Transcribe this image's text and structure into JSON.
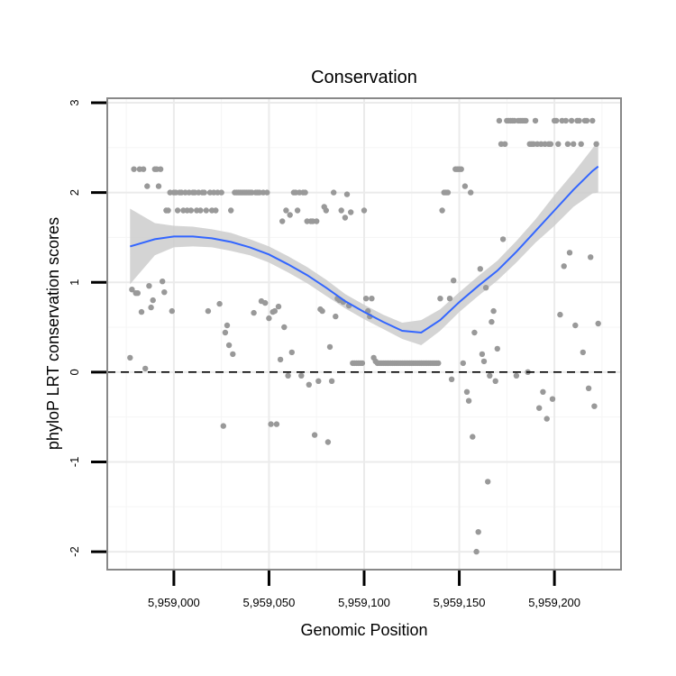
{
  "chart_data": {
    "type": "scatter",
    "title": "Conservation",
    "xlabel": "Genomic Position",
    "ylabel": "phyloP LRT conservation scores",
    "xlim": [
      5958965,
      5959235
    ],
    "ylim": [
      -2.2,
      3.05
    ],
    "x_ticks": [
      5959000,
      5959050,
      5959100,
      5959150,
      5959200
    ],
    "x_tick_labels": [
      "5,959,000",
      "5,959,050",
      "5,959,100",
      "5,959,150",
      "5,959,200"
    ],
    "y_ticks": [
      -2,
      -1,
      0,
      1,
      2,
      3
    ],
    "y_tick_labels": [
      "-2",
      "-1",
      "0",
      "1",
      "2",
      "3"
    ],
    "grid": true,
    "reference_line": {
      "y": 0,
      "style": "dashed"
    },
    "colors": {
      "points": "#999999",
      "smooth_line": "#3366ff",
      "confidence_band": "#cccccc",
      "panel_border": "#888888",
      "grid_major": "#ebebeb",
      "grid_minor": "#f5f5f5",
      "reference_line": "#000000"
    },
    "points": [
      [
        5958977,
        0.16
      ],
      [
        5958978,
        0.92
      ],
      [
        5958979,
        2.26
      ],
      [
        5958980,
        0.88
      ],
      [
        5958981,
        0.88
      ],
      [
        5958982,
        2.26
      ],
      [
        5958983,
        0.67
      ],
      [
        5958984,
        2.26
      ],
      [
        5958985,
        0.04
      ],
      [
        5958986,
        2.07
      ],
      [
        5958987,
        0.96
      ],
      [
        5958988,
        0.72
      ],
      [
        5958989,
        0.8
      ],
      [
        5958990,
        2.26
      ],
      [
        5958991,
        2.26
      ],
      [
        5958992,
        2.07
      ],
      [
        5958993,
        2.26
      ],
      [
        5958994,
        1.01
      ],
      [
        5958995,
        0.89
      ],
      [
        5958996,
        1.8
      ],
      [
        5958997,
        1.8
      ],
      [
        5958998,
        2.0
      ],
      [
        5958999,
        0.68
      ],
      [
        5959000,
        2.0
      ],
      [
        5959001,
        2.0
      ],
      [
        5959002,
        1.8
      ],
      [
        5959003,
        2.0
      ],
      [
        5959004,
        2.0
      ],
      [
        5959005,
        1.8
      ],
      [
        5959006,
        2.0
      ],
      [
        5959007,
        1.8
      ],
      [
        5959008,
        2.0
      ],
      [
        5959009,
        1.8
      ],
      [
        5959010,
        2.0
      ],
      [
        5959011,
        2.0
      ],
      [
        5959012,
        1.8
      ],
      [
        5959013,
        2.0
      ],
      [
        5959014,
        1.8
      ],
      [
        5959015,
        2.0
      ],
      [
        5959016,
        2.0
      ],
      [
        5959017,
        1.8
      ],
      [
        5959018,
        0.68
      ],
      [
        5959019,
        2.0
      ],
      [
        5959020,
        1.8
      ],
      [
        5959021,
        2.0
      ],
      [
        5959022,
        1.8
      ],
      [
        5959023,
        2.0
      ],
      [
        5959024,
        0.76
      ],
      [
        5959025,
        2.0
      ],
      [
        5959026,
        -0.6
      ],
      [
        5959027,
        0.44
      ],
      [
        5959028,
        0.52
      ],
      [
        5959029,
        0.3
      ],
      [
        5959030,
        1.8
      ],
      [
        5959031,
        0.2
      ],
      [
        5959032,
        2.0
      ],
      [
        5959033,
        2.0
      ],
      [
        5959034,
        2.0
      ],
      [
        5959035,
        2.0
      ],
      [
        5959036,
        2.0
      ],
      [
        5959037,
        2.0
      ],
      [
        5959038,
        2.0
      ],
      [
        5959039,
        2.0
      ],
      [
        5959040,
        2.0
      ],
      [
        5959041,
        2.0
      ],
      [
        5959042,
        0.66
      ],
      [
        5959043,
        2.0
      ],
      [
        5959044,
        2.0
      ],
      [
        5959045,
        2.0
      ],
      [
        5959046,
        0.79
      ],
      [
        5959047,
        2.0
      ],
      [
        5959048,
        0.77
      ],
      [
        5959049,
        2.0
      ],
      [
        5959050,
        0.6
      ],
      [
        5959051,
        -0.58
      ],
      [
        5959052,
        0.67
      ],
      [
        5959053,
        0.68
      ],
      [
        5959054,
        -0.58
      ],
      [
        5959055,
        0.73
      ],
      [
        5959056,
        0.14
      ],
      [
        5959057,
        1.68
      ],
      [
        5959058,
        0.5
      ],
      [
        5959059,
        1.8
      ],
      [
        5959060,
        -0.04
      ],
      [
        5959061,
        1.75
      ],
      [
        5959062,
        0.22
      ],
      [
        5959063,
        2.0
      ],
      [
        5959064,
        2.0
      ],
      [
        5959065,
        1.8
      ],
      [
        5959066,
        2.0
      ],
      [
        5959067,
        -0.04
      ],
      [
        5959068,
        2.0
      ],
      [
        5959069,
        2.0
      ],
      [
        5959070,
        1.68
      ],
      [
        5959071,
        -0.14
      ],
      [
        5959072,
        1.68
      ],
      [
        5959073,
        1.68
      ],
      [
        5959074,
        -0.7
      ],
      [
        5959075,
        1.68
      ],
      [
        5959076,
        -0.1
      ],
      [
        5959077,
        0.7
      ],
      [
        5959078,
        0.68
      ],
      [
        5959079,
        1.84
      ],
      [
        5959080,
        1.8
      ],
      [
        5959081,
        -0.78
      ],
      [
        5959082,
        0.28
      ],
      [
        5959083,
        -0.1
      ],
      [
        5959084,
        2.0
      ],
      [
        5959085,
        0.62
      ],
      [
        5959086,
        0.82
      ],
      [
        5959087,
        0.8
      ],
      [
        5959088,
        1.8
      ],
      [
        5959089,
        0.78
      ],
      [
        5959090,
        1.72
      ],
      [
        5959091,
        1.98
      ],
      [
        5959092,
        0.74
      ],
      [
        5959093,
        1.78
      ],
      [
        5959094,
        0.1
      ],
      [
        5959095,
        0.1
      ],
      [
        5959096,
        0.1
      ],
      [
        5959097,
        0.1
      ],
      [
        5959098,
        0.1
      ],
      [
        5959099,
        0.1
      ],
      [
        5959100,
        1.8
      ],
      [
        5959101,
        0.82
      ],
      [
        5959102,
        0.68
      ],
      [
        5959103,
        0.62
      ],
      [
        5959104,
        0.82
      ],
      [
        5959105,
        0.16
      ],
      [
        5959106,
        0.12
      ],
      [
        5959107,
        0.1
      ],
      [
        5959108,
        0.1
      ],
      [
        5959109,
        0.1
      ],
      [
        5959110,
        0.1
      ],
      [
        5959111,
        0.1
      ],
      [
        5959112,
        0.1
      ],
      [
        5959113,
        0.1
      ],
      [
        5959114,
        0.1
      ],
      [
        5959115,
        0.1
      ],
      [
        5959116,
        0.1
      ],
      [
        5959117,
        0.1
      ],
      [
        5959118,
        0.1
      ],
      [
        5959119,
        0.1
      ],
      [
        5959120,
        0.1
      ],
      [
        5959121,
        0.1
      ],
      [
        5959122,
        0.1
      ],
      [
        5959123,
        0.1
      ],
      [
        5959124,
        0.1
      ],
      [
        5959125,
        0.1
      ],
      [
        5959126,
        0.1
      ],
      [
        5959127,
        0.1
      ],
      [
        5959128,
        0.1
      ],
      [
        5959129,
        0.1
      ],
      [
        5959130,
        0.1
      ],
      [
        5959131,
        0.1
      ],
      [
        5959132,
        0.1
      ],
      [
        5959133,
        0.1
      ],
      [
        5959134,
        0.1
      ],
      [
        5959135,
        0.1
      ],
      [
        5959136,
        0.1
      ],
      [
        5959137,
        0.1
      ],
      [
        5959138,
        0.1
      ],
      [
        5959139,
        0.1
      ],
      [
        5959140,
        0.82
      ],
      [
        5959141,
        1.8
      ],
      [
        5959142,
        2.0
      ],
      [
        5959143,
        2.0
      ],
      [
        5959144,
        2.0
      ],
      [
        5959145,
        0.82
      ],
      [
        5959146,
        -0.08
      ],
      [
        5959147,
        1.02
      ],
      [
        5959148,
        2.26
      ],
      [
        5959149,
        2.26
      ],
      [
        5959150,
        2.26
      ],
      [
        5959151,
        2.26
      ],
      [
        5959152,
        0.1
      ],
      [
        5959153,
        2.07
      ],
      [
        5959154,
        -0.22
      ],
      [
        5959155,
        -0.32
      ],
      [
        5959156,
        2.0
      ],
      [
        5959157,
        -0.72
      ],
      [
        5959158,
        0.44
      ],
      [
        5959159,
        -2.0
      ],
      [
        5959160,
        -1.78
      ],
      [
        5959161,
        1.15
      ],
      [
        5959162,
        0.2
      ],
      [
        5959163,
        0.12
      ],
      [
        5959164,
        0.94
      ],
      [
        5959165,
        -1.22
      ],
      [
        5959166,
        -0.04
      ],
      [
        5959167,
        0.56
      ],
      [
        5959168,
        0.68
      ],
      [
        5959169,
        -0.1
      ],
      [
        5959170,
        0.26
      ],
      [
        5959171,
        2.8
      ],
      [
        5959172,
        2.54
      ],
      [
        5959173,
        1.48
      ],
      [
        5959174,
        2.54
      ],
      [
        5959175,
        2.8
      ],
      [
        5959176,
        2.8
      ],
      [
        5959177,
        2.8
      ],
      [
        5959178,
        2.8
      ],
      [
        5959179,
        2.8
      ],
      [
        5959180,
        -0.04
      ],
      [
        5959181,
        2.8
      ],
      [
        5959182,
        2.8
      ],
      [
        5959183,
        2.8
      ],
      [
        5959184,
        2.8
      ],
      [
        5959185,
        2.8
      ],
      [
        5959186,
        0.0
      ],
      [
        5959187,
        2.54
      ],
      [
        5959188,
        2.54
      ],
      [
        5959189,
        2.54
      ],
      [
        5959190,
        2.8
      ],
      [
        5959191,
        2.54
      ],
      [
        5959192,
        -0.4
      ],
      [
        5959193,
        2.54
      ],
      [
        5959194,
        -0.22
      ],
      [
        5959195,
        2.54
      ],
      [
        5959196,
        -0.52
      ],
      [
        5959197,
        2.54
      ],
      [
        5959198,
        2.54
      ],
      [
        5959199,
        -0.3
      ],
      [
        5959200,
        2.8
      ],
      [
        5959201,
        2.8
      ],
      [
        5959202,
        2.54
      ],
      [
        5959203,
        0.64
      ],
      [
        5959204,
        2.8
      ],
      [
        5959205,
        1.18
      ],
      [
        5959206,
        2.8
      ],
      [
        5959207,
        2.54
      ],
      [
        5959208,
        1.33
      ],
      [
        5959209,
        2.8
      ],
      [
        5959210,
        2.54
      ],
      [
        5959211,
        0.52
      ],
      [
        5959212,
        2.8
      ],
      [
        5959213,
        2.8
      ],
      [
        5959214,
        2.54
      ],
      [
        5959215,
        0.22
      ],
      [
        5959216,
        2.8
      ],
      [
        5959217,
        2.8
      ],
      [
        5959218,
        -0.18
      ],
      [
        5959219,
        1.28
      ],
      [
        5959220,
        2.8
      ],
      [
        5959221,
        -0.38
      ],
      [
        5959222,
        2.54
      ],
      [
        5959223,
        0.54
      ]
    ],
    "smooth": {
      "x": [
        5958977,
        5958990,
        5959000,
        5959010,
        5959020,
        5959030,
        5959040,
        5959050,
        5959060,
        5959070,
        5959080,
        5959090,
        5959100,
        5959110,
        5959120,
        5959130,
        5959140,
        5959150,
        5959160,
        5959170,
        5959180,
        5959190,
        5959200,
        5959210,
        5959220,
        5959223
      ],
      "y": [
        1.4,
        1.48,
        1.51,
        1.51,
        1.49,
        1.45,
        1.39,
        1.31,
        1.2,
        1.08,
        0.94,
        0.79,
        0.67,
        0.56,
        0.46,
        0.44,
        0.58,
        0.78,
        0.96,
        1.13,
        1.34,
        1.57,
        1.8,
        2.03,
        2.24,
        2.29
      ],
      "ci_low": [
        0.98,
        1.3,
        1.39,
        1.4,
        1.39,
        1.35,
        1.3,
        1.22,
        1.11,
        0.99,
        0.85,
        0.71,
        0.59,
        0.48,
        0.37,
        0.3,
        0.46,
        0.67,
        0.85,
        1.02,
        1.22,
        1.44,
        1.63,
        1.84,
        1.99,
        2.0
      ],
      "ci_high": [
        1.82,
        1.66,
        1.63,
        1.62,
        1.59,
        1.55,
        1.48,
        1.4,
        1.29,
        1.17,
        1.03,
        0.87,
        0.75,
        0.64,
        0.55,
        0.58,
        0.7,
        0.89,
        1.07,
        1.24,
        1.46,
        1.7,
        1.97,
        2.22,
        2.49,
        2.58
      ]
    }
  }
}
